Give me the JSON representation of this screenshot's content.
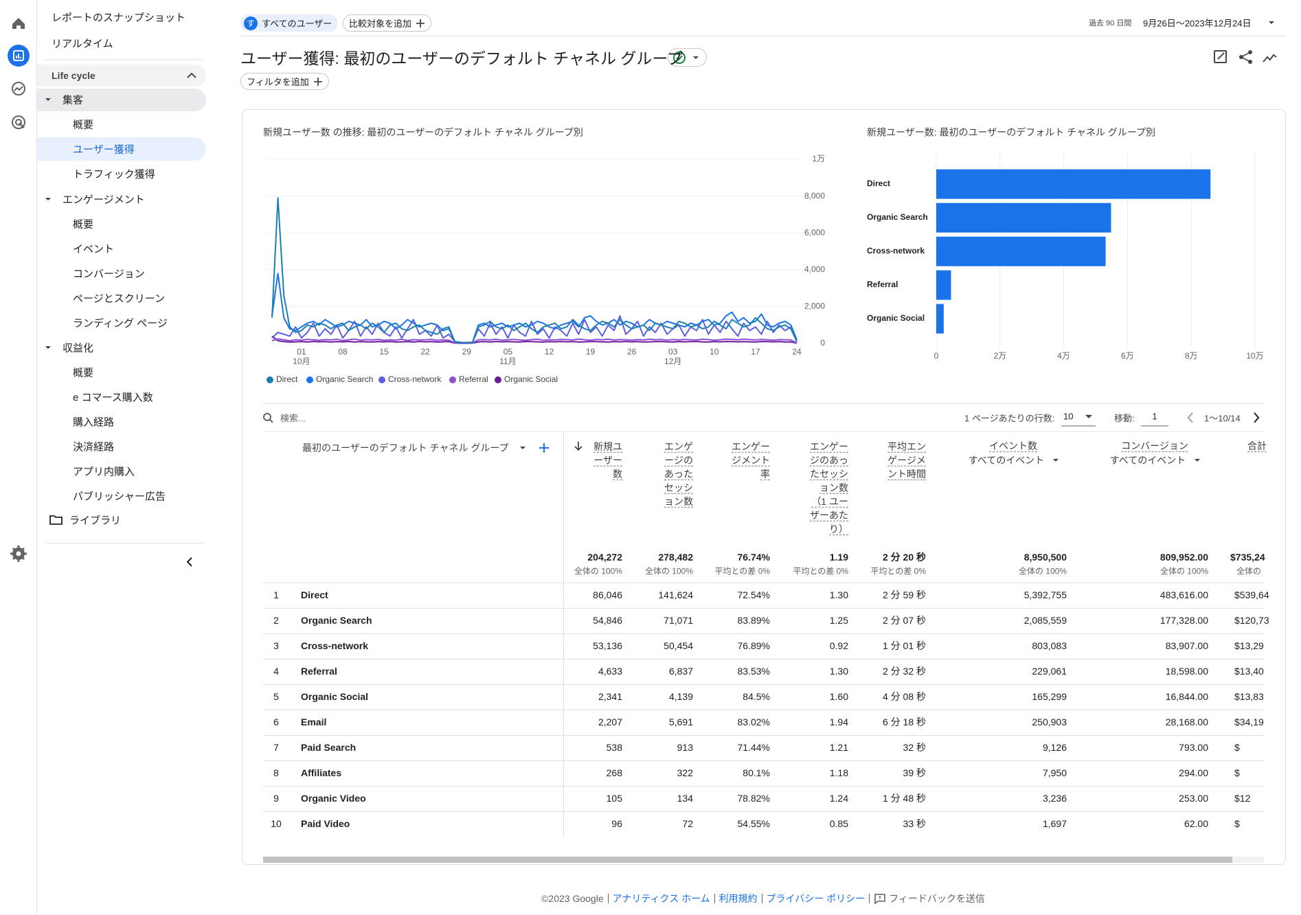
{
  "sidebar": {
    "snapshot": "レポートのスナップショット",
    "realtime": "リアルタイム",
    "section": "Life cycle",
    "groups": [
      {
        "label": "集客",
        "items": [
          "概要",
          "ユーザー獲得",
          "トラフィック獲得"
        ]
      },
      {
        "label": "エンゲージメント",
        "items": [
          "概要",
          "イベント",
          "コンバージョン",
          "ページとスクリーン",
          "ランディング ページ"
        ]
      },
      {
        "label": "収益化",
        "items": [
          "概要",
          "e コマース購入数",
          "購入経路",
          "決済経路",
          "アプリ内購入",
          "パブリッシャー広告"
        ]
      }
    ],
    "library": "ライブラリ"
  },
  "header": {
    "segment_badge": "す",
    "segment": "すべてのユーザー",
    "compare": "比較対象を追加",
    "period": "過去 90 日間",
    "date_range": "9月26日～2023年12月24日",
    "title": "ユーザー獲得: 最初のユーザーのデフォルト チャネル グループ",
    "filter": "フィルタを追加"
  },
  "chart_data": [
    {
      "type": "line",
      "title": "新規ユーザー数 の推移: 最初のユーザーのデフォルト チャネル グループ別",
      "grid": true,
      "categories": [
        null,
        null,
        null,
        null,
        null,
        "01",
        null,
        null,
        null,
        null,
        null,
        null,
        "08",
        null,
        null,
        null,
        null,
        null,
        null,
        "15",
        null,
        null,
        null,
        null,
        null,
        null,
        "22",
        null,
        null,
        null,
        null,
        null,
        null,
        "29",
        null,
        null,
        null,
        null,
        null,
        null,
        "05",
        null,
        null,
        null,
        null,
        null,
        null,
        "12",
        null,
        null,
        null,
        null,
        null,
        null,
        "19",
        null,
        null,
        null,
        null,
        null,
        null,
        "26",
        null,
        null,
        null,
        null,
        null,
        null,
        "03",
        null,
        null,
        null,
        null,
        null,
        null,
        "10",
        null,
        null,
        null,
        null,
        null,
        null,
        "17",
        null,
        null,
        null,
        null,
        null,
        null,
        "24"
      ],
      "category_months": [
        null,
        null,
        null,
        null,
        null,
        "10月",
        null,
        null,
        null,
        null,
        null,
        null,
        null,
        null,
        null,
        null,
        null,
        null,
        null,
        null,
        null,
        null,
        null,
        null,
        null,
        null,
        null,
        null,
        null,
        null,
        null,
        null,
        null,
        null,
        null,
        null,
        null,
        null,
        null,
        null,
        "11月",
        null,
        null,
        null,
        null,
        null,
        null,
        null,
        null,
        null,
        null,
        null,
        null,
        null,
        null,
        null,
        null,
        null,
        null,
        null,
        null,
        null,
        null,
        null,
        null,
        null,
        null,
        null,
        "12月",
        null,
        null,
        null,
        null,
        null,
        null,
        null,
        null,
        null,
        null,
        null,
        null,
        null,
        null,
        null,
        null,
        null,
        null,
        null,
        null,
        null
      ],
      "ylim": [
        0,
        10000
      ],
      "yticks": [
        0,
        {
          "value": 2000,
          "label": "2,000"
        },
        {
          "value": 4000,
          "label": "4,000"
        },
        {
          "value": 6000,
          "label": "6,000"
        },
        {
          "value": 8000,
          "label": "8,000"
        },
        {
          "value": 10000,
          "label": "1万"
        }
      ],
      "series": [
        {
          "name": "Direct",
          "color": "#1a7fb0",
          "values": [
            1400,
            7900,
            2600,
            900,
            600,
            700,
            1000,
            900,
            1100,
            1000,
            800,
            1000,
            1100,
            700,
            900,
            1000,
            800,
            1100,
            900,
            600,
            1000,
            1100,
            800,
            700,
            900,
            1000,
            700,
            600,
            500,
            800,
            900,
            100,
            50,
            50,
            60,
            900,
            1000,
            1200,
            900,
            800,
            1000,
            700,
            900,
            1100,
            800,
            600,
            900,
            1000,
            1100,
            800,
            900,
            1300,
            1000,
            800,
            700,
            1000,
            1200,
            1100,
            900,
            1300,
            1000,
            800,
            900,
            1000,
            700,
            1100,
            1000,
            900,
            800,
            1200,
            1100,
            900,
            1000,
            800,
            900,
            1200,
            1000,
            800,
            1300,
            1100,
            900,
            1000,
            1400,
            1100,
            800,
            700,
            900,
            1000,
            800,
            100
          ]
        },
        {
          "name": "Organic Search",
          "color": "#1a73e8",
          "values": [
            1500,
            3800,
            1400,
            800,
            700,
            900,
            1100,
            1200,
            1000,
            1300,
            1100,
            900,
            1000,
            1200,
            1100,
            1000,
            1300,
            900,
            1000,
            1200,
            1100,
            800,
            1000,
            1300,
            1100,
            900,
            1000,
            1100,
            1000,
            700,
            800,
            100,
            60,
            50,
            70,
            1000,
            1100,
            900,
            1000,
            1100,
            900,
            1000,
            1100,
            900,
            1000,
            1200,
            1100,
            900,
            800,
            1000,
            1100,
            1200,
            900,
            1400,
            1500,
            1200,
            1000,
            1100,
            1300,
            1000,
            1200,
            1100,
            900,
            1000,
            1300,
            1100,
            1000,
            1200,
            1100,
            1000,
            900,
            1100,
            1000,
            1200,
            1300,
            1000,
            1100,
            1500,
            1700,
            1200,
            1400,
            1100,
            1200,
            1600,
            1000,
            900,
            1100,
            1200,
            1000,
            200
          ]
        },
        {
          "name": "Cross-network",
          "color": "#5b5fe0",
          "values": [
            300,
            600,
            500,
            400,
            900,
            300,
            600,
            1100,
            400,
            800,
            500,
            1000,
            300,
            700,
            1200,
            400,
            900,
            500,
            1100,
            600,
            400,
            900,
            300,
            800,
            1300,
            500,
            700,
            400,
            1000,
            300,
            500,
            100,
            50,
            40,
            60,
            800,
            400,
            1100,
            500,
            900,
            300,
            1000,
            600,
            400,
            1200,
            500,
            800,
            300,
            900,
            700,
            400,
            1100,
            500,
            1300,
            600,
            900,
            400,
            1000,
            700,
            1500,
            500,
            800,
            1200,
            400,
            900,
            600,
            1100,
            500,
            800,
            1000,
            400,
            900,
            700,
            1300,
            500,
            1000,
            600,
            1200,
            800,
            400,
            1100,
            700,
            900,
            500,
            1200,
            600,
            1000,
            700,
            900,
            100
          ]
        },
        {
          "name": "Referral",
          "color": "#8c4fd8",
          "values": [
            150,
            250,
            200,
            150,
            200,
            180,
            220,
            200,
            170,
            210,
            190,
            230,
            160,
            200,
            240,
            180,
            210,
            190,
            220,
            170,
            200,
            180,
            230,
            160,
            210,
            190,
            200,
            220,
            170,
            190,
            180,
            30,
            20,
            20,
            30,
            200,
            210,
            190,
            230,
            180,
            200,
            220,
            190,
            170,
            210,
            230,
            180,
            200,
            190,
            220,
            210,
            190,
            240,
            200,
            180,
            220,
            200,
            230,
            190,
            210,
            200,
            180,
            210,
            190,
            230,
            200,
            220,
            180,
            210,
            190,
            220,
            200,
            190,
            230,
            210,
            180,
            200,
            240,
            220,
            200,
            230,
            210,
            190,
            220,
            200,
            180,
            210,
            200,
            190,
            30
          ]
        },
        {
          "name": "Organic Social",
          "color": "#6a1b9a",
          "values": [
            400,
            150,
            100,
            80,
            90,
            100,
            80,
            110,
            90,
            100,
            80,
            100,
            90,
            110,
            80,
            100,
            90,
            80,
            100,
            90,
            110,
            80,
            90,
            100,
            80,
            110,
            90,
            100,
            80,
            90,
            100,
            20,
            10,
            10,
            20,
            90,
            100,
            80,
            110,
            90,
            100,
            90,
            80,
            110,
            100,
            90,
            80,
            100,
            90,
            110,
            90,
            100,
            80,
            90,
            110,
            100,
            90,
            80,
            100,
            90,
            110,
            90,
            100,
            80,
            90,
            100,
            110,
            90,
            80,
            100,
            90,
            100,
            110,
            90,
            80,
            100,
            90,
            110,
            100,
            90,
            100,
            90,
            80,
            110,
            100,
            90,
            100,
            80,
            90,
            20
          ]
        }
      ]
    },
    {
      "type": "bar",
      "orientation": "horizontal",
      "title": "新規ユーザー数: 最初のユーザーのデフォルト チャネル グループ別",
      "color": "#1a73e8",
      "grid": true,
      "categories": [
        "Direct",
        "Organic Search",
        "Cross-network",
        "Referral",
        "Organic Social"
      ],
      "values": [
        86046,
        54846,
        53136,
        4633,
        2341
      ],
      "xlim": [
        0,
        100000
      ],
      "xticks": [
        0,
        {
          "value": 20000,
          "label": "2万"
        },
        {
          "value": 40000,
          "label": "4万"
        },
        {
          "value": 60000,
          "label": "6万"
        },
        {
          "value": 80000,
          "label": "8万"
        },
        {
          "value": 100000,
          "label": "10万"
        }
      ]
    }
  ],
  "table": {
    "search": "検索...",
    "rows_per_page_label": "1 ページあたりの行数:",
    "rows_per_page": "10",
    "goto_label": "移動:",
    "goto": "1",
    "range": "1～10/14",
    "dimension": "最初のユーザーのデフォルト チャネル グループ",
    "columns": [
      {
        "name": "新規ユーザー数",
        "total": "204,272",
        "total_note": "全体の 100%"
      },
      {
        "name": "エンゲージのあったセッション数",
        "total": "278,482",
        "total_note": "全体の 100%"
      },
      {
        "name": "エンゲージメント率",
        "total": "76.74%",
        "total_note": "平均との差 0%"
      },
      {
        "name": "エンゲージのあったセッション数（1 ユーザーあたり）",
        "total": "1.19",
        "total_note": "平均との差 0%"
      },
      {
        "name": "平均エンゲージメント時間",
        "total": "2 分 20 秒",
        "total_note": "平均との差 0%"
      },
      {
        "name": "イベント数",
        "filter": "すべてのイベント",
        "total": "8,950,500",
        "total_note": "全体の 100%"
      },
      {
        "name": "コンバージョン",
        "filter": "すべてのイベント",
        "total": "809,952.00",
        "total_note": "全体の 100%"
      },
      {
        "name": "合計",
        "total": "$735,24",
        "total_note": "全体の"
      }
    ],
    "rows": [
      [
        "1",
        "Direct",
        "86,046",
        "141,624",
        "72.54%",
        "1.30",
        "2 分 59 秒",
        "5,392,755",
        "483,616.00",
        "$539,64"
      ],
      [
        "2",
        "Organic Search",
        "54,846",
        "71,071",
        "83.89%",
        "1.25",
        "2 分 07 秒",
        "2,085,559",
        "177,328.00",
        "$120,73"
      ],
      [
        "3",
        "Cross-network",
        "53,136",
        "50,454",
        "76.89%",
        "0.92",
        "1 分 01 秒",
        "803,083",
        "83,907.00",
        "$13,29"
      ],
      [
        "4",
        "Referral",
        "4,633",
        "6,837",
        "83.53%",
        "1.30",
        "2 分 32 秒",
        "229,061",
        "18,598.00",
        "$13,40"
      ],
      [
        "5",
        "Organic Social",
        "2,341",
        "4,139",
        "84.5%",
        "1.60",
        "4 分 08 秒",
        "165,299",
        "16,844.00",
        "$13,83"
      ],
      [
        "6",
        "Email",
        "2,207",
        "5,691",
        "83.02%",
        "1.94",
        "6 分 18 秒",
        "250,903",
        "28,168.00",
        "$34,19"
      ],
      [
        "7",
        "Paid Search",
        "538",
        "913",
        "71.44%",
        "1.21",
        "32 秒",
        "9,126",
        "793.00",
        "$"
      ],
      [
        "8",
        "Affiliates",
        "268",
        "322",
        "80.1%",
        "1.18",
        "39 秒",
        "7,950",
        "294.00",
        "$"
      ],
      [
        "9",
        "Organic Video",
        "105",
        "134",
        "78.82%",
        "1.24",
        "1 分 48 秒",
        "3,236",
        "253.00",
        "$12"
      ],
      [
        "10",
        "Paid Video",
        "96",
        "72",
        "54.55%",
        "0.85",
        "33 秒",
        "1,697",
        "62.00",
        "$"
      ]
    ]
  },
  "footer": {
    "copyright": "©2023 Google",
    "links": [
      "アナリティクス ホーム",
      "利用規約",
      "プライバシー ポリシー"
    ],
    "feedback": "フィードバックを送信"
  }
}
